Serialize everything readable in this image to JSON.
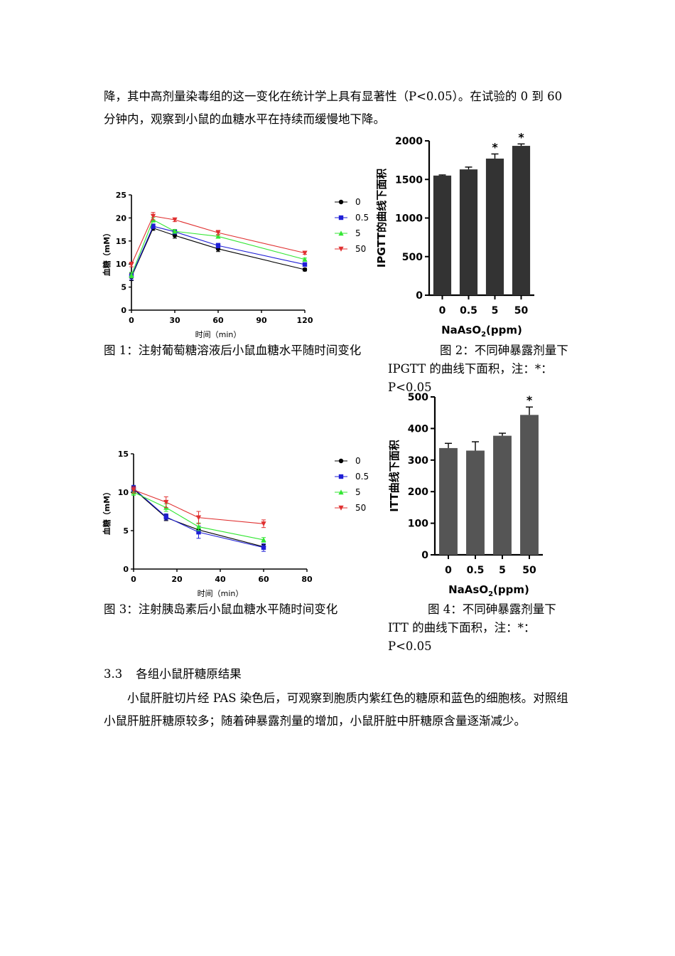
{
  "text": {
    "para_top": "降，其中高剂量染毒组的这一变化在统计学上具有显著性（P<0.05）。在试验的 0 到 60 分钟内，观察到小鼠的血糖水平在持续而缓慢地下降。",
    "caption1": "图 1：注射葡萄糖溶液后小鼠血糖水平随时间变化",
    "caption2": "图 2：不同砷暴露剂量下 IPGTT 的曲线下面积，注：*：P<0.05",
    "caption3": "图 3：注射胰岛素后小鼠血糖水平随时间变化",
    "caption4": "图 4：不同砷暴露剂量下 ITT 的曲线下面积，注：*：P<0.05",
    "section_number": "3.3",
    "section_title": "各组小鼠肝糖原结果",
    "para_bottom": "小鼠肝脏切片经 PAS 染色后，可观察到胞质内紫红色的糖原和蓝色的细胞核。对照组小鼠肝脏肝糖原较多；随着砷暴露剂量的增加，小鼠肝脏中肝糖原含量逐渐减少。"
  },
  "colors": {
    "black": "#000000",
    "blue": "#1f1fd6",
    "green": "#33e633",
    "red": "#e03030",
    "bar": "#333333",
    "bar4": "#555555"
  },
  "chart_data": [
    {
      "type": "line",
      "xlabel": "时间（min）",
      "ylabel": "血糖（mM）",
      "xlim": [
        0,
        120
      ],
      "ylim": [
        0,
        25
      ],
      "xticks": [
        0,
        30,
        60,
        90,
        120
      ],
      "yticks": [
        0,
        5,
        10,
        15,
        20,
        25
      ],
      "legend_position": "right",
      "series": [
        {
          "name": "0",
          "marker": "circle",
          "color": "#000000",
          "x": [
            0,
            15,
            30,
            60,
            120
          ],
          "y": [
            7.2,
            17.8,
            16.2,
            13.3,
            8.8
          ],
          "err": [
            0.8,
            0.5,
            0.6,
            0.6,
            0.3
          ]
        },
        {
          "name": "0.5",
          "marker": "square",
          "color": "#1f1fd6",
          "x": [
            0,
            15,
            30,
            60,
            120
          ],
          "y": [
            7.4,
            18.2,
            17.0,
            14.0,
            9.9
          ],
          "err": [
            0.8,
            0.5,
            0.5,
            0.5,
            0.3
          ]
        },
        {
          "name": "5",
          "marker": "triangle-up",
          "color": "#33e633",
          "x": [
            0,
            15,
            30,
            60,
            120
          ],
          "y": [
            7.6,
            19.6,
            17.1,
            16.0,
            11.0
          ],
          "err": [
            0.6,
            0.5,
            0.4,
            0.4,
            0.3
          ]
        },
        {
          "name": "50",
          "marker": "triangle-down",
          "color": "#e03030",
          "x": [
            0,
            15,
            30,
            60,
            120
          ],
          "y": [
            9.9,
            20.4,
            19.6,
            16.8,
            12.4
          ],
          "err": [
            0.5,
            0.8,
            0.4,
            0.5,
            0.3
          ]
        }
      ]
    },
    {
      "type": "bar",
      "categories": [
        "0",
        "0.5",
        "5",
        "50"
      ],
      "values": [
        1550,
        1630,
        1770,
        1935
      ],
      "errors": [
        8,
        30,
        60,
        25
      ],
      "significance": [
        "",
        "",
        "*",
        "*"
      ],
      "ylabel": "IPGTT的曲线下面积",
      "xlabel": "NaAsO2(ppm)",
      "ylim": [
        0,
        2000
      ],
      "yticks": [
        0,
        500,
        1000,
        1500,
        2000
      ]
    },
    {
      "type": "line",
      "xlabel": "时间（min）",
      "ylabel": "血糖（mM）",
      "xlim": [
        0,
        80
      ],
      "ylim": [
        0,
        15
      ],
      "xticks": [
        0,
        20,
        40,
        60,
        80
      ],
      "yticks": [
        0,
        5,
        10,
        15
      ],
      "legend_position": "right",
      "series": [
        {
          "name": "0",
          "marker": "circle",
          "color": "#000000",
          "x": [
            0,
            15,
            30,
            60
          ],
          "y": [
            10.4,
            6.7,
            5.1,
            2.9
          ],
          "err": [
            0.4,
            0.4,
            0.5,
            0.3
          ]
        },
        {
          "name": "0.5",
          "marker": "square",
          "color": "#1f1fd6",
          "x": [
            0,
            15,
            30,
            60
          ],
          "y": [
            10.5,
            6.8,
            4.8,
            2.8
          ],
          "err": [
            0.4,
            0.4,
            0.8,
            0.5
          ]
        },
        {
          "name": "5",
          "marker": "triangle-up",
          "color": "#33e633",
          "x": [
            0,
            15,
            30,
            60
          ],
          "y": [
            10.0,
            8.0,
            5.5,
            3.8
          ],
          "err": [
            0.4,
            0.5,
            0.5,
            0.3
          ]
        },
        {
          "name": "50",
          "marker": "triangle-down",
          "color": "#e03030",
          "x": [
            0,
            15,
            30,
            60
          ],
          "y": [
            10.3,
            8.7,
            6.7,
            5.9
          ],
          "err": [
            0.4,
            0.7,
            0.8,
            0.5
          ]
        }
      ]
    },
    {
      "type": "bar",
      "categories": [
        "0",
        "0.5",
        "5",
        "50"
      ],
      "values": [
        338,
        330,
        377,
        443
      ],
      "errors": [
        15,
        28,
        8,
        25
      ],
      "significance": [
        "",
        "",
        "",
        "*"
      ],
      "ylabel": "ITT曲线下面积",
      "xlabel": "NaAsO2(ppm)",
      "ylim": [
        0,
        500
      ],
      "yticks": [
        0,
        100,
        200,
        300,
        400,
        500
      ]
    }
  ]
}
